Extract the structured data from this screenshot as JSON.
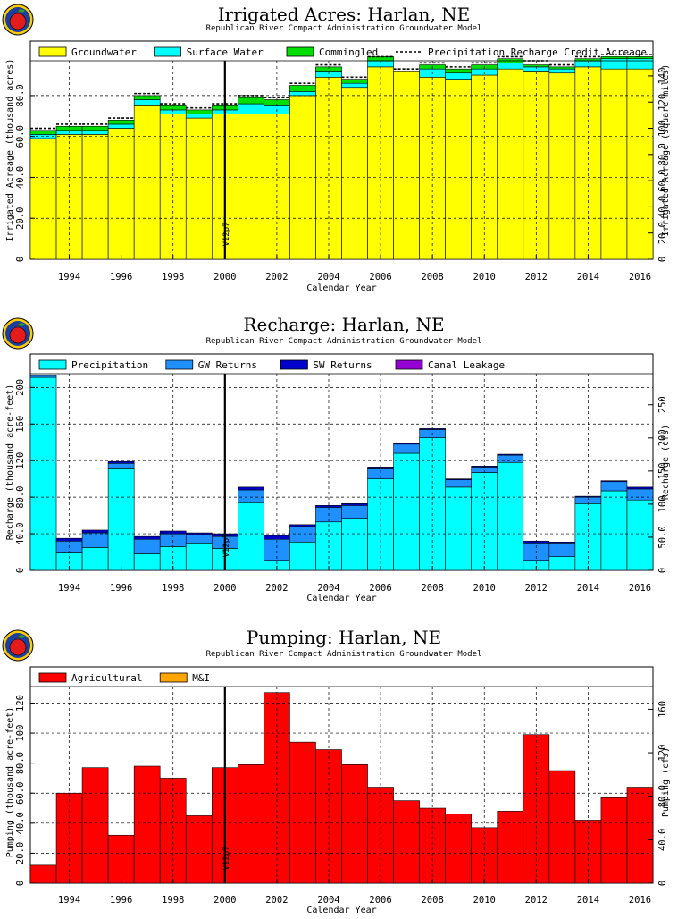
{
  "colors": {
    "groundwater": "#ffff00",
    "surface_water": "#00ffff",
    "commingled": "#00dd00",
    "precipitation": "#00ffff",
    "gw_returns": "#1e90ff",
    "sw_returns": "#0000cc",
    "canal_leakage": "#9400d3",
    "agricultural": "#ff0000",
    "mi": "#ffa500",
    "outline": "#000000"
  },
  "logo_icon": "apple-logo-icon",
  "chart_data": [
    {
      "type": "bar",
      "stacked": true,
      "title": "Irrigated  Acres:  Harlan,  NE",
      "subtitle": "Republican  River  Compact  Administration  Groundwater  Model",
      "xlabel": "Calendar  Year",
      "ylabel": "Irrigated  Acreage  (thousand  acres)",
      "y2label": "Irrigated  Acreage  (square  miles)",
      "xlim": [
        1993,
        2017
      ],
      "ylim": [
        0,
        97
      ],
      "y_ticks": [
        0,
        20,
        40,
        60,
        80
      ],
      "y_tick_labels": [
        "0",
        "20.0",
        "40.0",
        "60.0",
        "80.0"
      ],
      "y2_ticks": [
        0,
        20,
        40,
        60,
        80,
        100,
        120,
        140
      ],
      "y2_tick_labels": [
        "0",
        "20.0",
        "40.0",
        "60.0",
        "80.0",
        "100",
        "120",
        "140"
      ],
      "y2_scale": 1.5625,
      "x_tick_labels": [
        "1994",
        "1996",
        "1998",
        "2000",
        "2002",
        "2004",
        "2006",
        "2008",
        "2010",
        "2012",
        "2014",
        "2016"
      ],
      "x_tick_years": [
        1994,
        1996,
        1998,
        2000,
        2002,
        2004,
        2006,
        2008,
        2010,
        2012,
        2014,
        2016
      ],
      "grid": true,
      "legend_position": "top",
      "marker": {
        "x": 2000.5,
        "label": "V12p7"
      },
      "years": [
        1993,
        1994,
        1995,
        1996,
        1997,
        1998,
        1999,
        2000,
        2001,
        2002,
        2003,
        2004,
        2005,
        2006,
        2007,
        2008,
        2009,
        2010,
        2011,
        2012,
        2013,
        2014,
        2015,
        2016
      ],
      "series": [
        {
          "name": "Groundwater",
          "color_key": "groundwater",
          "values": [
            59,
            61,
            61,
            64,
            75,
            71,
            69,
            71,
            71,
            71,
            80,
            89,
            84,
            94,
            92,
            89,
            88,
            90,
            93,
            92,
            91,
            94,
            93,
            93
          ]
        },
        {
          "name": "Surface  Water",
          "color_key": "surface_water",
          "values": [
            2,
            2,
            2,
            2,
            3,
            2,
            2,
            2,
            5,
            4,
            2,
            3,
            2,
            3,
            0,
            4,
            3,
            3,
            3,
            2,
            2,
            3,
            5,
            5
          ]
        },
        {
          "name": "Commingled",
          "color_key": "commingled",
          "values": [
            2,
            2,
            2,
            2,
            2,
            2,
            2,
            2,
            3,
            3,
            3,
            2,
            2,
            2,
            0,
            2,
            2,
            2,
            2,
            1,
            1,
            1,
            1,
            1
          ]
        }
      ],
      "overlay": {
        "name": "Precipitation  Recharge  Credit  Acreage",
        "style": "dashed",
        "values": [
          64,
          66,
          66,
          69,
          81,
          76,
          74,
          76,
          80,
          79,
          86,
          95,
          89,
          99,
          93,
          96,
          94,
          96,
          99,
          97,
          95,
          99,
          100,
          100
        ]
      }
    },
    {
      "type": "bar",
      "stacked": true,
      "title": "Recharge:  Harlan,  NE",
      "subtitle": "Republican  River  Compact  Administration  Groundwater  Model",
      "xlabel": "Calendar  Year",
      "ylabel": "Recharge  (thousand  acre-feet)",
      "y2label": "Recharge  (cfs)",
      "xlim": [
        1993,
        2017
      ],
      "ylim": [
        0,
        215
      ],
      "y_ticks": [
        0,
        40,
        80,
        120,
        160,
        200
      ],
      "y_tick_labels": [
        "0",
        "40.0",
        "80.0",
        "120",
        "160",
        "200"
      ],
      "y2_ticks": [
        0,
        50,
        100,
        150,
        200,
        250
      ],
      "y2_tick_labels": [
        "0",
        "50.0",
        "100",
        "150",
        "200",
        "250"
      ],
      "y2_scale": 1.381,
      "x_tick_labels": [
        "1994",
        "1996",
        "1998",
        "2000",
        "2002",
        "2004",
        "2006",
        "2008",
        "2010",
        "2012",
        "2014",
        "2016"
      ],
      "x_tick_years": [
        1994,
        1996,
        1998,
        2000,
        2002,
        2004,
        2006,
        2008,
        2010,
        2012,
        2014,
        2016
      ],
      "grid": true,
      "legend_position": "top",
      "marker": {
        "x": 2000.5,
        "label": "V12p7"
      },
      "years": [
        1993,
        1994,
        1995,
        1996,
        1997,
        1998,
        1999,
        2000,
        2001,
        2002,
        2003,
        2004,
        2005,
        2006,
        2007,
        2008,
        2009,
        2010,
        2011,
        2012,
        2013,
        2014,
        2015,
        2016
      ],
      "series": [
        {
          "name": "Precipitation",
          "color_key": "precipitation",
          "values": [
            211,
            19,
            25,
            111,
            18,
            26,
            30,
            24,
            74,
            11,
            31,
            53,
            57,
            100,
            128,
            145,
            91,
            107,
            118,
            11,
            15,
            73,
            87,
            77
          ]
        },
        {
          "name": "GW  Returns",
          "color_key": "gw_returns",
          "values": [
            2,
            13,
            16,
            6,
            16,
            14,
            9,
            13,
            14,
            23,
            17,
            16,
            14,
            11,
            10,
            9,
            8,
            6,
            8,
            19,
            15,
            7,
            10,
            12
          ]
        },
        {
          "name": "SW  Returns",
          "color_key": "sw_returns",
          "values": [
            0,
            3,
            3,
            2,
            3,
            3,
            2,
            3,
            3,
            4,
            2,
            2,
            2,
            2,
            1,
            1,
            1,
            1,
            1,
            2,
            1,
            1,
            1,
            2
          ]
        },
        {
          "name": "Canal  Leakage",
          "color_key": "canal_leakage",
          "values": [
            0,
            0,
            0,
            0,
            0,
            0,
            0,
            0,
            0,
            0,
            0,
            0,
            0,
            0,
            0,
            0,
            0,
            0,
            0,
            0,
            0,
            0,
            0,
            0
          ]
        }
      ]
    },
    {
      "type": "bar",
      "stacked": true,
      "title": "Pumping:  Harlan,  NE",
      "subtitle": "Republican  River  Compact  Administration  Groundwater  Model",
      "xlabel": "Calendar  Year",
      "ylabel": "Pumping  (thousand  acre-feet)",
      "y2label": "Pumping  (cfs)",
      "xlim": [
        1993,
        2017
      ],
      "ylim": [
        0,
        131
      ],
      "y_ticks": [
        0,
        20,
        40,
        60,
        80,
        100,
        120
      ],
      "y_tick_labels": [
        "0",
        "20.0",
        "40.0",
        "60.0",
        "80.0",
        "100",
        "120"
      ],
      "y2_ticks": [
        0,
        40,
        80,
        120,
        160
      ],
      "y2_tick_labels": [
        "0",
        "40.0",
        "80.0",
        "120",
        "160"
      ],
      "y2_scale": 1.381,
      "x_tick_labels": [
        "1994",
        "1996",
        "1998",
        "2000",
        "2002",
        "2004",
        "2006",
        "2008",
        "2010",
        "2012",
        "2014",
        "2016"
      ],
      "x_tick_years": [
        1994,
        1996,
        1998,
        2000,
        2002,
        2004,
        2006,
        2008,
        2010,
        2012,
        2014,
        2016
      ],
      "grid": true,
      "legend_position": "top",
      "marker": {
        "x": 2000.5,
        "label": "V12p7"
      },
      "years": [
        1993,
        1994,
        1995,
        1996,
        1997,
        1998,
        1999,
        2000,
        2001,
        2002,
        2003,
        2004,
        2005,
        2006,
        2007,
        2008,
        2009,
        2010,
        2011,
        2012,
        2013,
        2014,
        2015,
        2016
      ],
      "series": [
        {
          "name": "Agricultural",
          "color_key": "agricultural",
          "values": [
            12,
            60,
            77,
            32,
            78,
            70,
            45,
            77,
            79,
            127,
            94,
            89,
            79,
            64,
            55,
            50,
            46,
            37,
            48,
            99,
            75,
            42,
            57,
            64
          ]
        },
        {
          "name": "M&I",
          "color_key": "mi",
          "values": [
            0,
            0,
            0,
            0,
            0,
            0,
            0,
            0,
            0,
            0,
            0,
            0,
            0,
            0,
            0,
            0,
            0,
            0,
            0,
            0,
            0,
            0,
            0,
            0
          ]
        }
      ]
    }
  ]
}
